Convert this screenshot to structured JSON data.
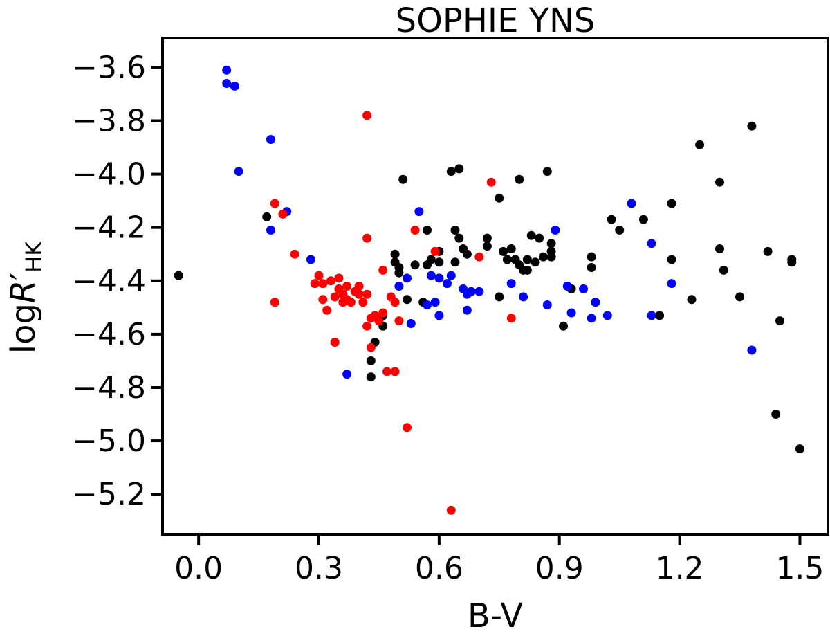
{
  "chart_data": {
    "type": "scatter",
    "title": "SOPHIE YNS",
    "xlabel": "B-V",
    "ylabel": {
      "main": "log",
      "italic": "R",
      "prime": "′",
      "sub": "HK"
    },
    "xlim": [
      -0.09,
      1.57
    ],
    "ylim": [
      -5.35,
      -3.49
    ],
    "xticks": [
      0.0,
      0.3,
      0.6,
      0.9,
      1.2,
      1.5
    ],
    "xtick_labels": [
      "0.0",
      "0.3",
      "0.6",
      "0.9",
      "1.2",
      "1.5"
    ],
    "yticks": [
      -3.6,
      -3.8,
      -4.0,
      -4.2,
      -4.4,
      -4.6,
      -4.8,
      -5.0,
      -5.2
    ],
    "ytick_labels": [
      "−3.6",
      "−3.8",
      "−4.0",
      "−4.2",
      "−4.4",
      "−4.6",
      "−4.8",
      "−5.0",
      "−5.2"
    ],
    "grid": false,
    "legend": "none",
    "series": [
      {
        "color": "#000000",
        "points": [
          [
            -0.05,
            -4.38
          ],
          [
            0.17,
            -4.16
          ],
          [
            0.43,
            -4.7
          ],
          [
            0.43,
            -4.76
          ],
          [
            0.44,
            -4.63
          ],
          [
            0.46,
            -4.53
          ],
          [
            0.46,
            -4.57
          ],
          [
            0.49,
            -4.3
          ],
          [
            0.49,
            -4.33
          ],
          [
            0.5,
            -4.35
          ],
          [
            0.5,
            -4.37
          ],
          [
            0.51,
            -4.02
          ],
          [
            0.52,
            -4.47
          ],
          [
            0.54,
            -4.34
          ],
          [
            0.56,
            -4.48
          ],
          [
            0.57,
            -4.21
          ],
          [
            0.57,
            -4.34
          ],
          [
            0.58,
            -4.32
          ],
          [
            0.6,
            -4.29
          ],
          [
            0.6,
            -4.33
          ],
          [
            0.63,
            -3.99
          ],
          [
            0.65,
            -3.98
          ],
          [
            0.64,
            -4.21
          ],
          [
            0.65,
            -4.24
          ],
          [
            0.64,
            -4.33
          ],
          [
            0.66,
            -4.28
          ],
          [
            0.67,
            -4.3
          ],
          [
            0.68,
            -4.44
          ],
          [
            0.72,
            -4.24
          ],
          [
            0.72,
            -4.27
          ],
          [
            0.75,
            -4.09
          ],
          [
            0.75,
            -4.46
          ],
          [
            0.76,
            -4.29
          ],
          [
            0.77,
            -4.32
          ],
          [
            0.78,
            -4.28
          ],
          [
            0.79,
            -4.32
          ],
          [
            0.8,
            -4.34
          ],
          [
            0.8,
            -4.02
          ],
          [
            0.81,
            -4.36
          ],
          [
            0.82,
            -4.36
          ],
          [
            0.82,
            -4.32
          ],
          [
            0.83,
            -4.23
          ],
          [
            0.84,
            -4.33
          ],
          [
            0.85,
            -4.24
          ],
          [
            0.86,
            -4.31
          ],
          [
            0.87,
            -3.99
          ],
          [
            0.88,
            -4.26
          ],
          [
            0.88,
            -4.29
          ],
          [
            0.88,
            -4.31
          ],
          [
            0.91,
            -4.57
          ],
          [
            0.93,
            -4.43
          ],
          [
            0.98,
            -4.31
          ],
          [
            0.98,
            -4.35
          ],
          [
            1.03,
            -4.17
          ],
          [
            1.05,
            -4.21
          ],
          [
            1.11,
            -4.17
          ],
          [
            1.15,
            -4.53
          ],
          [
            1.18,
            -4.11
          ],
          [
            1.18,
            -4.32
          ],
          [
            1.23,
            -4.47
          ],
          [
            1.25,
            -3.89
          ],
          [
            1.3,
            -4.03
          ],
          [
            1.3,
            -4.28
          ],
          [
            1.31,
            -4.36
          ],
          [
            1.35,
            -4.46
          ],
          [
            1.38,
            -3.82
          ],
          [
            1.42,
            -4.29
          ],
          [
            1.44,
            -4.9
          ],
          [
            1.45,
            -4.55
          ],
          [
            1.48,
            -4.32
          ],
          [
            1.48,
            -4.33
          ],
          [
            1.5,
            -5.03
          ]
        ]
      },
      {
        "color": "#0000ff",
        "points": [
          [
            0.07,
            -3.61
          ],
          [
            0.07,
            -3.66
          ],
          [
            0.09,
            -3.67
          ],
          [
            0.1,
            -3.99
          ],
          [
            0.18,
            -3.87
          ],
          [
            0.18,
            -4.21
          ],
          [
            0.22,
            -4.14
          ],
          [
            0.28,
            -4.32
          ],
          [
            0.37,
            -4.75
          ],
          [
            0.5,
            -4.42
          ],
          [
            0.52,
            -4.39
          ],
          [
            0.53,
            -4.56
          ],
          [
            0.55,
            -4.14
          ],
          [
            0.57,
            -4.49
          ],
          [
            0.58,
            -4.38
          ],
          [
            0.59,
            -4.48
          ],
          [
            0.6,
            -4.39
          ],
          [
            0.6,
            -4.53
          ],
          [
            0.62,
            -4.41
          ],
          [
            0.63,
            -4.38
          ],
          [
            0.66,
            -4.43
          ],
          [
            0.67,
            -4.45
          ],
          [
            0.67,
            -4.51
          ],
          [
            0.68,
            -4.44
          ],
          [
            0.7,
            -4.44
          ],
          [
            0.78,
            -4.41
          ],
          [
            0.81,
            -4.46
          ],
          [
            0.87,
            -4.49
          ],
          [
            0.89,
            -4.21
          ],
          [
            0.92,
            -4.42
          ],
          [
            0.93,
            -4.52
          ],
          [
            0.96,
            -4.43
          ],
          [
            0.98,
            -4.54
          ],
          [
            0.99,
            -4.48
          ],
          [
            1.02,
            -4.53
          ],
          [
            1.08,
            -4.11
          ],
          [
            1.13,
            -4.53
          ],
          [
            1.13,
            -4.26
          ],
          [
            1.18,
            -4.41
          ],
          [
            1.38,
            -4.66
          ]
        ]
      },
      {
        "color": "#ff0000",
        "points": [
          [
            0.19,
            -4.11
          ],
          [
            0.19,
            -4.48
          ],
          [
            0.21,
            -4.15
          ],
          [
            0.24,
            -4.3
          ],
          [
            0.29,
            -4.41
          ],
          [
            0.3,
            -4.38
          ],
          [
            0.31,
            -4.41
          ],
          [
            0.31,
            -4.47
          ],
          [
            0.32,
            -4.51
          ],
          [
            0.33,
            -4.4
          ],
          [
            0.34,
            -4.46
          ],
          [
            0.34,
            -4.63
          ],
          [
            0.35,
            -4.39
          ],
          [
            0.35,
            -4.43
          ],
          [
            0.36,
            -4.45
          ],
          [
            0.36,
            -4.48
          ],
          [
            0.37,
            -4.42
          ],
          [
            0.37,
            -4.47
          ],
          [
            0.38,
            -4.48
          ],
          [
            0.39,
            -4.44
          ],
          [
            0.4,
            -4.45
          ],
          [
            0.4,
            -4.42
          ],
          [
            0.41,
            -4.48
          ],
          [
            0.42,
            -4.45
          ],
          [
            0.42,
            -4.24
          ],
          [
            0.42,
            -4.57
          ],
          [
            0.42,
            -3.78
          ],
          [
            0.43,
            -4.54
          ],
          [
            0.43,
            -4.65
          ],
          [
            0.44,
            -4.53
          ],
          [
            0.45,
            -4.55
          ],
          [
            0.46,
            -4.36
          ],
          [
            0.46,
            -4.52
          ],
          [
            0.47,
            -4.74
          ],
          [
            0.48,
            -4.46
          ],
          [
            0.49,
            -4.74
          ],
          [
            0.49,
            -4.48
          ],
          [
            0.5,
            -4.55
          ],
          [
            0.52,
            -4.95
          ],
          [
            0.54,
            -4.21
          ],
          [
            0.59,
            -4.29
          ],
          [
            0.63,
            -5.26
          ],
          [
            0.7,
            -4.31
          ],
          [
            0.73,
            -4.03
          ],
          [
            0.78,
            -4.54
          ]
        ]
      }
    ]
  }
}
